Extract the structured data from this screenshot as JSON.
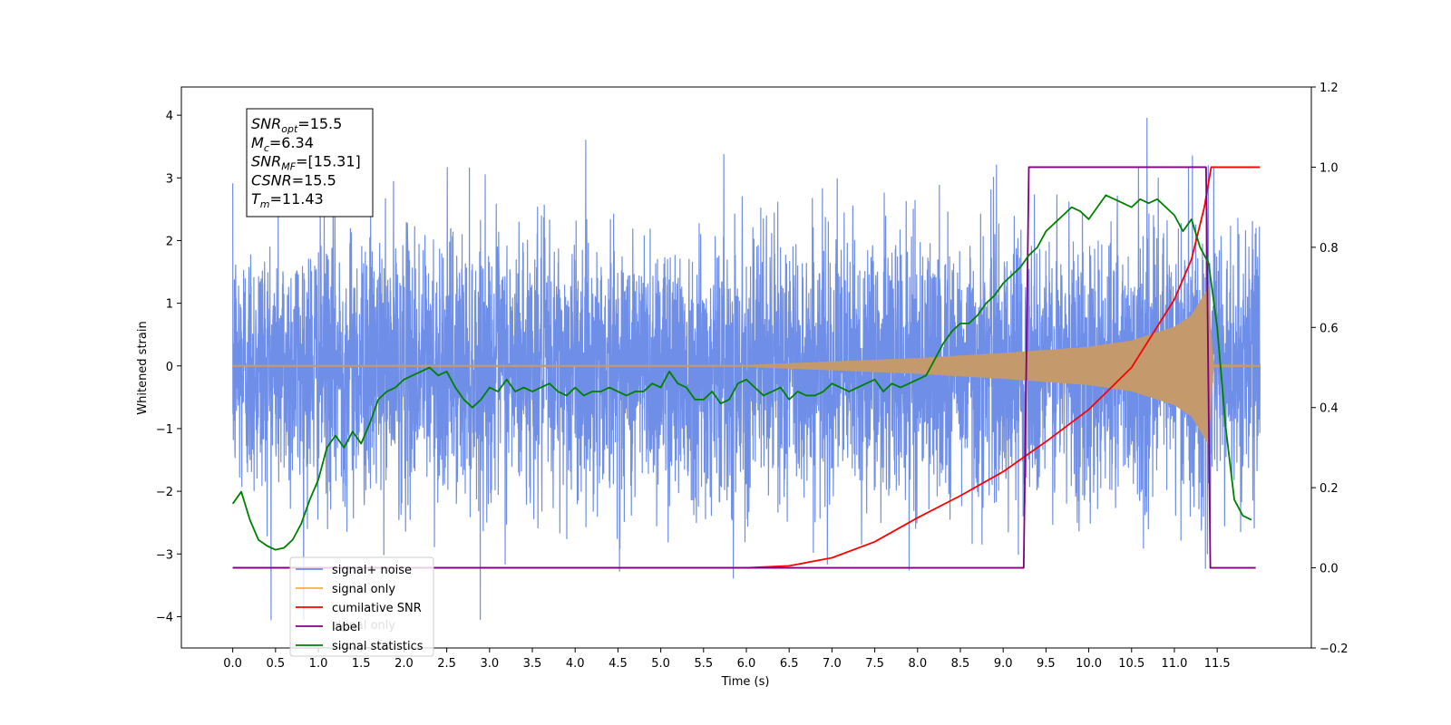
{
  "chart_data": {
    "type": "line",
    "xlabel": "Time (s)",
    "ylabel": "Whitened strain",
    "xlim": [
      -0.6,
      12.6
    ],
    "ylim": [
      -4.5,
      4.45
    ],
    "y2lim": [
      -0.2,
      1.2
    ],
    "xticks": [
      "0.0",
      "0.5",
      "1.0",
      "1.5",
      "2.0",
      "2.5",
      "3.0",
      "3.5",
      "4.0",
      "4.5",
      "5.0",
      "5.5",
      "6.0",
      "6.5",
      "7.0",
      "7.5",
      "8.0",
      "8.5",
      "9.0",
      "9.5",
      "10.0",
      "10.5",
      "11.0",
      "11.5"
    ],
    "xtick_values": [
      0,
      0.5,
      1,
      1.5,
      2,
      2.5,
      3,
      3.5,
      4,
      4.5,
      5,
      5.5,
      6,
      6.5,
      7,
      7.5,
      8,
      8.5,
      9,
      9.5,
      10,
      10.5,
      11,
      11.5
    ],
    "yticks": [
      "4",
      "3",
      "2",
      "1",
      "0",
      "−1",
      "−2",
      "−3",
      "−4"
    ],
    "ytick_values": [
      4,
      3,
      2,
      1,
      0,
      -1,
      -2,
      -3,
      -4
    ],
    "y2ticks": [
      "1.2",
      "1.0",
      "0.8",
      "0.6",
      "0.4",
      "0.2",
      "0.0",
      "−0.2"
    ],
    "y2tick_values": [
      1.2,
      1.0,
      0.8,
      0.6,
      0.4,
      0.2,
      0.0,
      -0.2
    ],
    "grid": false,
    "legend_position": "lower-left",
    "annotation_box": {
      "lines": [
        {
          "sym": "SNR",
          "sub": "opt",
          "val": "=15.5"
        },
        {
          "sym": "M",
          "sub": "c",
          "val": "=6.34"
        },
        {
          "sym": "SNR",
          "sub": "MF",
          "val": "=[15.31]"
        },
        {
          "sym": "CSNR",
          "sub": "",
          "val": "=15.5"
        },
        {
          "sym": "T",
          "sub": "m",
          "val": "=11.43"
        }
      ]
    },
    "legend_entries": [
      {
        "label": "signal+ noise",
        "color": "#6f8ee8"
      },
      {
        "label": "signal only",
        "color": "#f5b041"
      },
      {
        "label": "cumilative SNR",
        "color": "#ff0000"
      },
      {
        "label": "label",
        "color": "#800080"
      },
      {
        "label": "signal statistics",
        "color": "#008000"
      }
    ],
    "hidden_legend_text": "signal only",
    "series": [
      {
        "name": "signal+ noise",
        "axis": "left",
        "color": "#6f8ee8",
        "x_start": 0.0,
        "x_end": 12.0,
        "noise_sigma": 1.05,
        "approx_range": [
          -4.05,
          4.05
        ]
      },
      {
        "name": "signal only",
        "axis": "left",
        "color": "#c49a6c",
        "x_start": 0.0,
        "x_end": 12.0,
        "chirp_peak_time": 11.43,
        "envelope": [
          [
            0,
            0.01
          ],
          [
            6,
            0.01
          ],
          [
            8,
            0.12
          ],
          [
            9,
            0.2
          ],
          [
            10,
            0.3
          ],
          [
            10.5,
            0.4
          ],
          [
            11,
            0.62
          ],
          [
            11.2,
            0.8
          ],
          [
            11.4,
            1.25
          ],
          [
            11.45,
            0.02
          ],
          [
            12,
            0.01
          ]
        ]
      },
      {
        "name": "cumilative SNR",
        "axis": "right",
        "color": "#ff0000",
        "x": [
          0,
          6.0,
          6.5,
          7.0,
          7.5,
          8.0,
          8.5,
          9.0,
          9.5,
          10.0,
          10.5,
          11.0,
          11.2,
          11.35,
          11.43,
          12.0
        ],
        "y": [
          0,
          0,
          0.005,
          0.025,
          0.065,
          0.125,
          0.18,
          0.24,
          0.315,
          0.395,
          0.5,
          0.67,
          0.77,
          0.9,
          1.0,
          1.0
        ]
      },
      {
        "name": "label",
        "axis": "right",
        "color": "#800080",
        "x": [
          0,
          9.24,
          9.3,
          11.37,
          11.42,
          11.95
        ],
        "y": [
          0,
          0,
          1.0,
          1.0,
          0,
          0
        ]
      },
      {
        "name": "signal statistics",
        "axis": "right",
        "color": "#008000",
        "x": [
          0,
          0.1,
          0.2,
          0.3,
          0.4,
          0.5,
          0.6,
          0.7,
          0.8,
          0.9,
          1.0,
          1.1,
          1.2,
          1.3,
          1.4,
          1.5,
          1.6,
          1.7,
          1.8,
          1.9,
          2.0,
          2.1,
          2.2,
          2.3,
          2.4,
          2.5,
          2.6,
          2.7,
          2.8,
          2.9,
          3.0,
          3.1,
          3.2,
          3.3,
          3.4,
          3.5,
          3.6,
          3.7,
          3.8,
          3.9,
          4.0,
          4.1,
          4.2,
          4.3,
          4.4,
          4.5,
          4.6,
          4.7,
          4.8,
          4.9,
          5.0,
          5.1,
          5.2,
          5.3,
          5.4,
          5.5,
          5.6,
          5.7,
          5.8,
          5.9,
          6.0,
          6.1,
          6.2,
          6.3,
          6.4,
          6.5,
          6.6,
          6.7,
          6.8,
          6.9,
          7.0,
          7.1,
          7.2,
          7.3,
          7.4,
          7.5,
          7.6,
          7.7,
          7.8,
          7.9,
          8.0,
          8.1,
          8.2,
          8.3,
          8.4,
          8.5,
          8.6,
          8.7,
          8.8,
          8.9,
          9.0,
          9.1,
          9.2,
          9.3,
          9.4,
          9.5,
          9.6,
          9.7,
          9.8,
          9.9,
          10.0,
          10.1,
          10.2,
          10.3,
          10.4,
          10.5,
          10.6,
          10.7,
          10.8,
          10.9,
          11.0,
          11.1,
          11.2,
          11.3,
          11.4,
          11.5,
          11.6,
          11.7,
          11.8,
          11.9
        ],
        "y": [
          0.16,
          0.19,
          0.12,
          0.07,
          0.055,
          0.045,
          0.05,
          0.07,
          0.11,
          0.17,
          0.22,
          0.3,
          0.33,
          0.3,
          0.34,
          0.31,
          0.36,
          0.42,
          0.44,
          0.45,
          0.47,
          0.48,
          0.49,
          0.5,
          0.48,
          0.49,
          0.45,
          0.42,
          0.4,
          0.42,
          0.45,
          0.44,
          0.47,
          0.44,
          0.45,
          0.44,
          0.45,
          0.46,
          0.44,
          0.43,
          0.45,
          0.43,
          0.44,
          0.44,
          0.45,
          0.44,
          0.43,
          0.44,
          0.44,
          0.46,
          0.45,
          0.49,
          0.46,
          0.45,
          0.42,
          0.42,
          0.44,
          0.41,
          0.42,
          0.46,
          0.47,
          0.45,
          0.43,
          0.44,
          0.45,
          0.42,
          0.44,
          0.43,
          0.43,
          0.44,
          0.46,
          0.45,
          0.44,
          0.45,
          0.46,
          0.47,
          0.44,
          0.46,
          0.45,
          0.46,
          0.47,
          0.48,
          0.52,
          0.56,
          0.59,
          0.61,
          0.61,
          0.63,
          0.66,
          0.68,
          0.71,
          0.73,
          0.75,
          0.78,
          0.8,
          0.84,
          0.86,
          0.88,
          0.9,
          0.89,
          0.87,
          0.9,
          0.93,
          0.92,
          0.91,
          0.9,
          0.92,
          0.91,
          0.92,
          0.9,
          0.88,
          0.84,
          0.87,
          0.8,
          0.76,
          0.6,
          0.35,
          0.17,
          0.13,
          0.12
        ]
      }
    ]
  }
}
